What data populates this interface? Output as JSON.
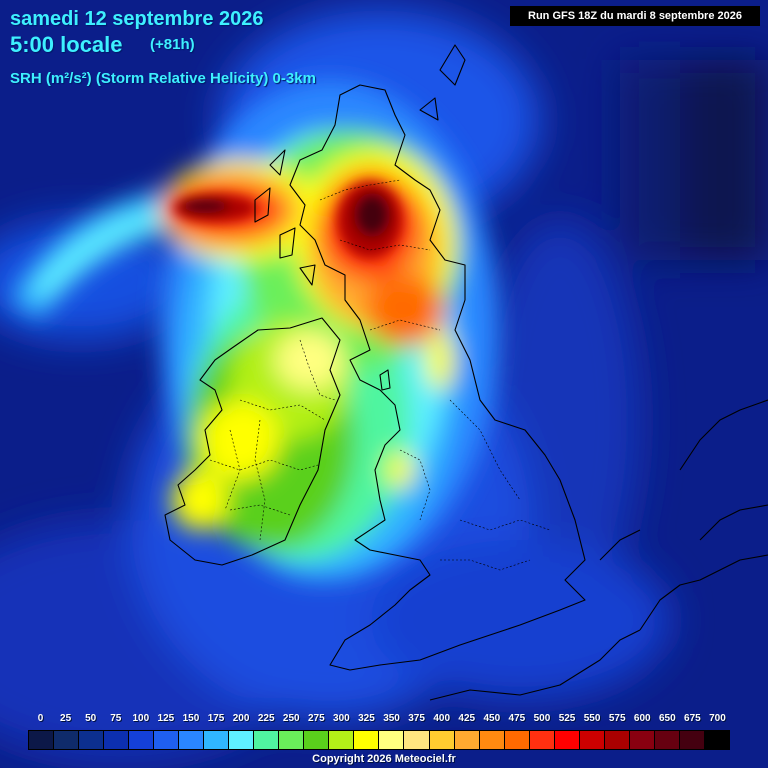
{
  "header": {
    "date": "samedi 12 septembre 2026",
    "time": "5:00 locale",
    "lead": "(+81h)",
    "parameter": "SRH (m²/s²) (Storm Relative Helicity) 0-3km"
  },
  "run_info": "Run GFS 18Z du mardi 8 septembre 2026",
  "legend": {
    "values": [
      "0",
      "25",
      "50",
      "75",
      "100",
      "125",
      "150",
      "175",
      "200",
      "225",
      "250",
      "275",
      "300",
      "325",
      "350",
      "375",
      "400",
      "425",
      "450",
      "475",
      "500",
      "525",
      "550",
      "575",
      "600",
      "650",
      "675",
      "700"
    ],
    "colors": [
      "#0c1848",
      "#0f2b6b",
      "#0c2f8f",
      "#0c2fb0",
      "#1440d8",
      "#1f5ff0",
      "#2a86ff",
      "#30b6ff",
      "#5ff0ff",
      "#50f5a0",
      "#6aef5a",
      "#5ad01c",
      "#b4f018",
      "#ffff00",
      "#ffff80",
      "#ffe680",
      "#ffcc30",
      "#ffaa30",
      "#ff8a10",
      "#ff6a00",
      "#ff3010",
      "#ff0000",
      "#cc0000",
      "#aa0000",
      "#880010",
      "#660010",
      "#440010",
      "#000000"
    ]
  },
  "copyright": "Copyright 2026 Meteociel.fr",
  "map": {
    "region": "Ireland and Great Britain",
    "maxima": [
      {
        "label": "northwest Scotland / Atlantic",
        "value": 675
      },
      {
        "label": "central Scotland",
        "value": 650
      }
    ]
  }
}
